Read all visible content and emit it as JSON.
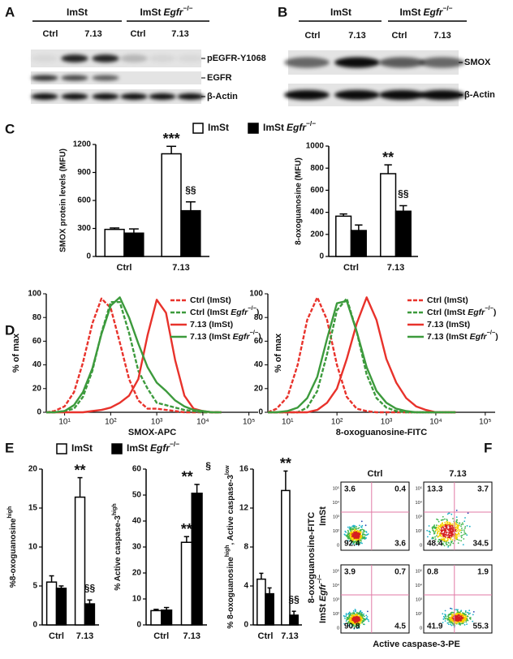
{
  "chart_data": [
    {
      "type": "blot",
      "panel": "A",
      "groups": [
        [
          {
            "text": "ImSt"
          }
        ],
        [
          {
            "text": "ImSt"
          },
          {
            "text": "Egfr",
            "style": "italic"
          },
          {
            "text": "−/−",
            "style": "sup"
          }
        ]
      ],
      "lanes": [
        "Ctrl",
        "7.13",
        "Ctrl",
        "7.13"
      ],
      "rows": [
        "pEGFR-Y1068",
        "EGFR",
        "β-Actin"
      ]
    },
    {
      "type": "blot",
      "panel": "B",
      "groups": [
        [
          {
            "text": "ImSt"
          }
        ],
        [
          {
            "text": "ImSt"
          },
          {
            "text": "Egfr",
            "style": "italic"
          },
          {
            "text": "−/−",
            "style": "sup"
          }
        ]
      ],
      "lanes": [
        "Ctrl",
        "7.13",
        "Ctrl",
        "7.13"
      ],
      "rows": [
        "SMOX",
        "β-Actin"
      ]
    },
    {
      "type": "bar",
      "panel": "C",
      "ylabel": "SMOX protein levels (MFU)",
      "categories": [
        "Ctrl",
        "7.13"
      ],
      "ylim": [
        0,
        1200
      ],
      "yticks": [
        0,
        300,
        600,
        900,
        1200
      ],
      "series": [
        {
          "name": [
            {
              "text": "ImSt"
            }
          ],
          "color": "#ffffff",
          "values": [
            290,
            1100
          ],
          "errors": [
            15,
            80
          ],
          "annotations": [
            null,
            "***"
          ]
        },
        {
          "name": [
            {
              "text": "ImSt"
            },
            {
              "text": "Egfr",
              "style": "italic"
            },
            {
              "text": "−/−",
              "style": "sup"
            }
          ],
          "color": "#000000",
          "values": [
            250,
            490
          ],
          "errors": [
            45,
            95
          ],
          "annotations": [
            null,
            "§§"
          ]
        }
      ]
    },
    {
      "type": "bar",
      "ylabel": "8-oxoguanosine (MFU)",
      "categories": [
        "Ctrl",
        "7.13"
      ],
      "legend": "top",
      "ylim": [
        0,
        1000
      ],
      "yticks": [
        0,
        200,
        400,
        600,
        800,
        1000
      ],
      "series": [
        {
          "name": [
            {
              "text": "ImSt"
            }
          ],
          "color": "#ffffff",
          "values": [
            365,
            750
          ],
          "errors": [
            20,
            80
          ],
          "annotations": [
            null,
            "**"
          ]
        },
        {
          "name": [
            {
              "text": "ImSt"
            },
            {
              "text": "Egfr",
              "style": "italic"
            },
            {
              "text": "−/−",
              "style": "sup"
            }
          ],
          "color": "#000000",
          "values": [
            235,
            410
          ],
          "errors": [
            50,
            50
          ],
          "annotations": [
            null,
            "§§"
          ]
        }
      ]
    },
    {
      "type": "histogram-overlay",
      "panel": "D",
      "xlabel": "SMOX-APC",
      "ylabel": "% of max",
      "xscale": "log",
      "legend": "top-right",
      "xlim": [
        4,
        158489
      ],
      "xticks": [
        {
          "value": 10,
          "label": "10¹"
        },
        {
          "value": 100,
          "label": "10²"
        },
        {
          "value": 1000,
          "label": "10³"
        },
        {
          "value": 10000,
          "label": "10⁴"
        },
        {
          "value": 100000,
          "label": "10⁵"
        }
      ],
      "ylim": [
        0,
        100
      ],
      "yticks": [
        0,
        20,
        40,
        60,
        80,
        100
      ],
      "x": [
        4,
        6,
        10,
        16,
        25,
        40,
        63,
        100,
        158,
        251,
        398,
        631,
        1000,
        1585,
        2512,
        3981,
        6310,
        10000,
        15849,
        25119
      ],
      "series": [
        {
          "name": [
            {
              "text": "Ctrl (ImSt)"
            }
          ],
          "color": "#e8322b",
          "dash": true,
          "values": [
            0,
            1,
            5,
            17,
            42,
            75,
            96,
            88,
            59,
            28,
            10,
            3,
            3,
            2,
            1,
            0,
            0,
            0,
            0,
            0
          ]
        },
        {
          "name": [
            {
              "text": "Ctrl (ImSt"
            },
            {
              "text": "Egfr",
              "style": "italic"
            },
            {
              "text": "−/−",
              "style": "sup"
            },
            {
              "text": ")"
            }
          ],
          "color": "#3c9a3c",
          "dash": true,
          "values": [
            0,
            0,
            1,
            3,
            13,
            35,
            67,
            93,
            93,
            67,
            35,
            20,
            8,
            6,
            4,
            2,
            1,
            0,
            0,
            0
          ]
        },
        {
          "name": [
            {
              "text": "7.13 (ImSt)"
            }
          ],
          "color": "#e8322b",
          "dash": false,
          "values": [
            0,
            0,
            0,
            0,
            0,
            1,
            2,
            4,
            8,
            14,
            28,
            65,
            95,
            84,
            44,
            14,
            3,
            1,
            0,
            0
          ]
        },
        {
          "name": [
            {
              "text": "7.13 (ImSt"
            },
            {
              "text": "Egfr",
              "style": "italic"
            },
            {
              "text": "−/−",
              "style": "sup"
            },
            {
              "text": ")"
            }
          ],
          "color": "#3c9a3c",
          "dash": false,
          "values": [
            0,
            0,
            1,
            6,
            17,
            37,
            66,
            90,
            97,
            80,
            58,
            38,
            25,
            18,
            10,
            5,
            2,
            1,
            0,
            0
          ]
        }
      ]
    },
    {
      "type": "histogram-overlay",
      "xlabel": "8-oxoguanosine-FITC",
      "ylabel": "% of max",
      "xscale": "log",
      "legend": "top-right",
      "xlim": [
        4,
        158489
      ],
      "xticks": [
        {
          "value": 10,
          "label": "10¹"
        },
        {
          "value": 100,
          "label": "10²"
        },
        {
          "value": 1000,
          "label": "10³"
        },
        {
          "value": 10000,
          "label": "10⁴"
        },
        {
          "value": 100000,
          "label": "10⁵"
        }
      ],
      "ylim": [
        0,
        100
      ],
      "yticks": [
        0,
        20,
        40,
        60,
        80,
        100
      ],
      "x": [
        4,
        6,
        10,
        16,
        25,
        40,
        63,
        100,
        158,
        251,
        398,
        631,
        1000,
        1585,
        2512,
        3981,
        6310,
        10000,
        15849,
        25119
      ],
      "series": [
        {
          "name": [
            {
              "text": "Ctrl (ImSt)"
            }
          ],
          "color": "#e8322b",
          "dash": true,
          "values": [
            0,
            3,
            13,
            40,
            78,
            97,
            78,
            40,
            13,
            3,
            1,
            0,
            0,
            0,
            0,
            0,
            0,
            0,
            0,
            0
          ]
        },
        {
          "name": [
            {
              "text": "Ctrl (ImSt"
            },
            {
              "text": "Egfr",
              "style": "italic"
            },
            {
              "text": "−/−",
              "style": "sup"
            },
            {
              "text": ")"
            }
          ],
          "color": "#3c9a3c",
          "dash": true,
          "values": [
            0,
            0,
            0,
            0,
            4,
            18,
            49,
            86,
            96,
            68,
            32,
            12,
            4,
            1,
            0,
            0,
            0,
            0,
            0,
            0
          ]
        },
        {
          "name": [
            {
              "text": "7.13 (ImSt)"
            }
          ],
          "color": "#e8322b",
          "dash": false,
          "values": [
            0,
            0,
            0,
            0,
            0,
            2,
            8,
            20,
            45,
            75,
            97,
            78,
            45,
            25,
            12,
            5,
            2,
            0,
            0,
            0
          ]
        },
        {
          "name": [
            {
              "text": "7.13 (ImSt"
            },
            {
              "text": "Egfr",
              "style": "italic"
            },
            {
              "text": "−/−",
              "style": "sup"
            },
            {
              "text": ")"
            }
          ],
          "color": "#3c9a3c",
          "dash": false,
          "values": [
            0,
            0,
            1,
            4,
            12,
            30,
            62,
            92,
            94,
            68,
            38,
            18,
            8,
            3,
            1,
            0,
            0,
            0,
            0,
            0
          ]
        }
      ]
    },
    {
      "type": "bar",
      "panel": "E",
      "legend": "top",
      "ylabel": [
        {
          "text": "%8-oxoguanosine"
        },
        {
          "text": "high",
          "style": "sup"
        }
      ],
      "categories": [
        "Ctrl",
        "7.13"
      ],
      "ylim": [
        0,
        20
      ],
      "yticks": [
        0,
        5,
        10,
        15,
        20
      ],
      "series": [
        {
          "name": [
            {
              "text": "ImSt"
            }
          ],
          "color": "#ffffff",
          "values": [
            5.5,
            16.4
          ],
          "errors": [
            0.8,
            2.5
          ],
          "annotations": [
            null,
            "**"
          ]
        },
        {
          "name": [
            {
              "text": "ImSt"
            },
            {
              "text": "Egfr",
              "style": "italic"
            },
            {
              "text": "−/−",
              "style": "sup"
            }
          ],
          "color": "#000000",
          "values": [
            4.7,
            2.7
          ],
          "errors": [
            0.3,
            0.5
          ],
          "annotations": [
            null,
            "§§"
          ]
        }
      ]
    },
    {
      "type": "bar",
      "ylabel": [
        {
          "text": "% Active caspase-3"
        },
        {
          "text": "high",
          "style": "sup"
        }
      ],
      "categories": [
        "Ctrl",
        "7.13"
      ],
      "ylim": [
        0,
        60
      ],
      "yticks": [
        0,
        10,
        20,
        30,
        40,
        50,
        60
      ],
      "series": [
        {
          "name": [
            {
              "text": "ImSt"
            }
          ],
          "color": "#ffffff",
          "values": [
            5.5,
            31.8
          ],
          "errors": [
            0.5,
            2.2
          ],
          "annotations": [
            null,
            "**"
          ]
        },
        {
          "name": [
            {
              "text": "ImSt"
            },
            {
              "text": "Egfr",
              "style": "italic"
            },
            {
              "text": "−/−",
              "style": "sup"
            }
          ],
          "color": "#000000",
          "values": [
            5.7,
            50.7
          ],
          "errors": [
            1,
            3.4
          ],
          "annotations": [
            null,
            [
              "**",
              "§"
            ]
          ]
        }
      ]
    },
    {
      "type": "bar",
      "ylabel": [
        {
          "text": "% 8-oxoguanosine"
        },
        {
          "text": "high",
          "style": "sup"
        },
        {
          "text": ", Active caspase-3"
        },
        {
          "text": "low",
          "style": "sup"
        }
      ],
      "categories": [
        "Ctrl",
        "7.13"
      ],
      "ylim": [
        0,
        16
      ],
      "yticks": [
        0,
        4,
        8,
        12,
        16
      ],
      "series": [
        {
          "name": [
            {
              "text": "ImSt"
            }
          ],
          "color": "#ffffff",
          "values": [
            4.7,
            13.8
          ],
          "errors": [
            0.6,
            2
          ],
          "annotations": [
            null,
            "**"
          ]
        },
        {
          "name": [
            {
              "text": "ImSt"
            },
            {
              "text": "Egfr",
              "style": "italic"
            },
            {
              "text": "−/−",
              "style": "sup"
            }
          ],
          "color": "#000000",
          "values": [
            3.2,
            1
          ],
          "errors": [
            0.6,
            0.4
          ],
          "annotations": [
            null,
            "§§"
          ]
        }
      ]
    },
    {
      "type": "quadrants",
      "panel": "F",
      "xlabel": "Active caspase-3-PE",
      "ylabel": "8-oxoguanosine-FITC",
      "columns": [
        "Ctrl",
        "7.13"
      ],
      "rows": [
        [
          {
            "text": "ImSt"
          }
        ],
        [
          {
            "text": "ImSt"
          },
          {
            "text": "Egfr",
            "style": "italic"
          },
          {
            "text": "−/−",
            "style": "sup"
          }
        ]
      ],
      "yticks": [
        "10⁵",
        "10⁴",
        "10³",
        "10²",
        "0"
      ],
      "quadrants": [
        [
          [
            3.6,
            0.4,
            92.4,
            3.6
          ],
          [
            13.3,
            3.7,
            48.4,
            34.5
          ]
        ],
        [
          [
            3.9,
            0.7,
            90.8,
            4.5
          ],
          [
            0.8,
            1.9,
            41.9,
            55.3
          ]
        ]
      ]
    }
  ]
}
